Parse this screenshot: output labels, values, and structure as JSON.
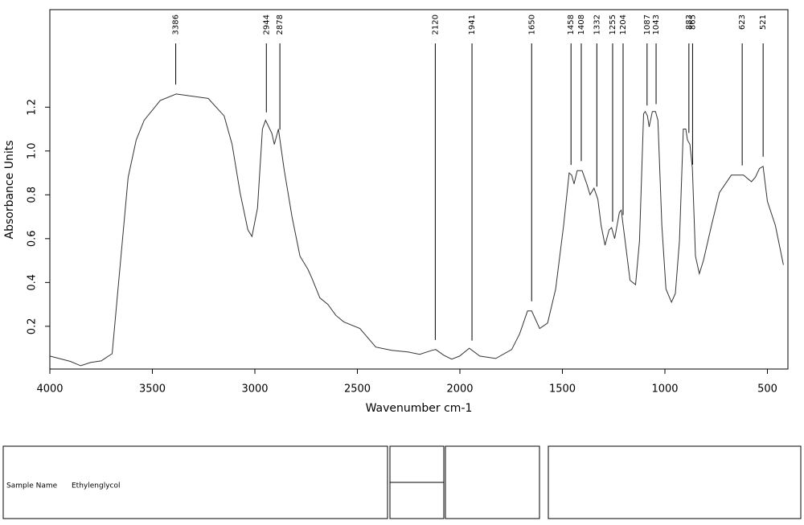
{
  "chart_data": {
    "type": "line",
    "x_label": "Wavenumber cm-1",
    "y_label": "Absorbance Units",
    "xlim": [
      4000,
      400
    ],
    "ylim": [
      0.005,
      1.645
    ],
    "xticks": [
      4000,
      3500,
      3000,
      2500,
      2000,
      1500,
      1000,
      500
    ],
    "yticks": [
      0.2,
      0.4,
      0.6,
      0.8,
      {
        "value": 1,
        "label": "1.0"
      },
      1.2
    ],
    "color": "#333333",
    "peaks": [
      3386,
      2944,
      2878,
      2120,
      1941,
      1650,
      1458,
      1408,
      1332,
      1255,
      1204,
      1087,
      1043,
      883,
      865,
      623,
      521
    ],
    "x": [
      4000,
      3900,
      3850,
      3800,
      3750,
      3696,
      3657,
      3618,
      3579,
      3540,
      3462,
      3384,
      3228,
      3150,
      3111,
      3072,
      3034,
      3014,
      2987,
      2963,
      2948,
      2917,
      2905,
      2885,
      2858,
      2819,
      2780,
      2741,
      2722,
      2683,
      2644,
      2605,
      2566,
      2488,
      2410,
      2332,
      2254,
      2196,
      2137,
      2118,
      2079,
      2040,
      2001,
      1954,
      1903,
      1825,
      1747,
      1708,
      1670,
      1650,
      1611,
      1572,
      1533,
      1494,
      1467,
      1455,
      1443,
      1428,
      1404,
      1381,
      1365,
      1346,
      1327,
      1311,
      1292,
      1272,
      1260,
      1245,
      1222,
      1213,
      1194,
      1170,
      1143,
      1124,
      1104,
      1096,
      1085,
      1077,
      1061,
      1046,
      1034,
      1015,
      995,
      968,
      949,
      929,
      910,
      898,
      890,
      878,
      866,
      851,
      832,
      812,
      773,
      734,
      676,
      617,
      578,
      559,
      539,
      521,
      500,
      461,
      422
    ],
    "values": [
      0.064,
      0.04,
      0.02,
      0.035,
      0.042,
      0.075,
      0.48,
      0.88,
      1.05,
      1.14,
      1.23,
      1.26,
      1.24,
      1.16,
      1.03,
      0.81,
      0.64,
      0.61,
      0.74,
      1.1,
      1.14,
      1.08,
      1.03,
      1.1,
      0.92,
      0.7,
      0.52,
      0.46,
      0.42,
      0.33,
      0.3,
      0.25,
      0.22,
      0.19,
      0.105,
      0.09,
      0.083,
      0.072,
      0.09,
      0.094,
      0.068,
      0.05,
      0.064,
      0.1,
      0.064,
      0.053,
      0.094,
      0.167,
      0.27,
      0.27,
      0.19,
      0.215,
      0.37,
      0.66,
      0.9,
      0.89,
      0.85,
      0.91,
      0.91,
      0.85,
      0.8,
      0.83,
      0.78,
      0.66,
      0.57,
      0.64,
      0.65,
      0.6,
      0.72,
      0.73,
      0.59,
      0.41,
      0.39,
      0.59,
      1.17,
      1.18,
      1.16,
      1.11,
      1.18,
      1.18,
      1.14,
      0.66,
      0.37,
      0.31,
      0.35,
      0.59,
      1.1,
      1.1,
      1.05,
      1.03,
      0.92,
      0.52,
      0.44,
      0.5,
      0.66,
      0.81,
      0.89,
      0.89,
      0.86,
      0.88,
      0.92,
      0.93,
      0.77,
      0.66,
      0.48
    ]
  },
  "info_panel": {
    "label": "Sample Name",
    "value": "Ethylenglycol"
  }
}
